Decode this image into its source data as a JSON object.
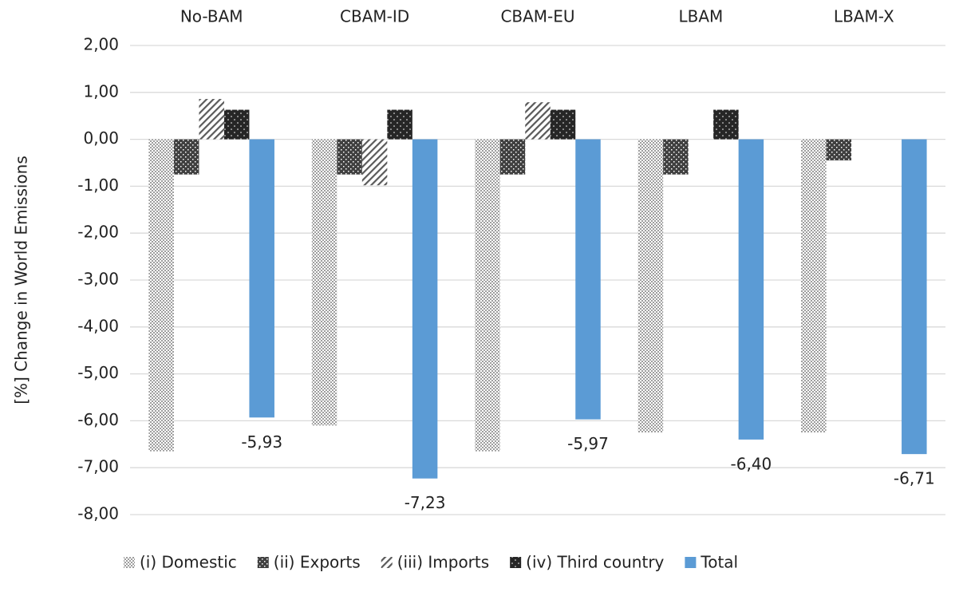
{
  "chart_data": {
    "type": "bar",
    "y_label": "[%] Change in World Emissions",
    "categories": [
      "No-BAM",
      "CBAM-ID",
      "CBAM-EU",
      "LBAM",
      "LBAM-X"
    ],
    "series": [
      {
        "name": "(i) Domestic",
        "color": "#7f7f7f",
        "values": [
          -6.65,
          -6.1,
          -6.65,
          -6.25,
          -6.25
        ]
      },
      {
        "name": "(ii) Exports",
        "color": "#404040",
        "values": [
          -0.75,
          -0.75,
          -0.75,
          -0.75,
          -0.45
        ]
      },
      {
        "name": "(iii) Imports",
        "color": "#595959",
        "values": [
          0.86,
          -0.98,
          0.79,
          0,
          0
        ]
      },
      {
        "name": "(iv) Third country",
        "color": "#262626",
        "values": [
          0.63,
          0.63,
          0.63,
          0.63,
          0
        ]
      },
      {
        "name": "Total",
        "color": "#5b9bd5",
        "values": [
          -5.93,
          -7.23,
          -5.97,
          -6.4,
          -6.71
        ],
        "value_labels": [
          "-5,93",
          "-7,23",
          "-5,97",
          "-6,40",
          "-6,71"
        ]
      }
    ],
    "ylim": [
      -8,
      2
    ],
    "yticks": [
      {
        "value": -8,
        "label": "-8,00"
      },
      {
        "value": -7,
        "label": "-7,00"
      },
      {
        "value": -6,
        "label": "-6,00"
      },
      {
        "value": -5,
        "label": "-5,00"
      },
      {
        "value": -4,
        "label": "-4,00"
      },
      {
        "value": -3,
        "label": "-3,00"
      },
      {
        "value": -2,
        "label": "-2,00"
      },
      {
        "value": -1,
        "label": "-1,00"
      },
      {
        "value": 0,
        "label": "0,00"
      },
      {
        "value": 1,
        "label": "1,00"
      },
      {
        "value": 2,
        "label": "2,00"
      }
    ],
    "grid": true
  }
}
